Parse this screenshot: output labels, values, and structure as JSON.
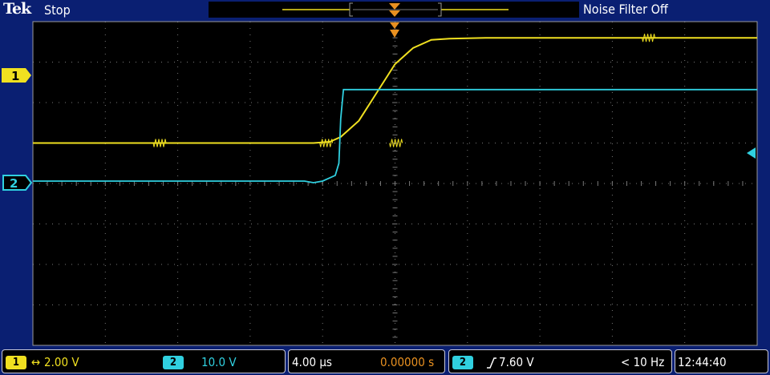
{
  "header": {
    "brand": "Tek",
    "run_state": "Stop",
    "noise_filter": "Noise Filter Off"
  },
  "channels": [
    {
      "id": "1",
      "color": "#f0e020",
      "scale": "2.00 V"
    },
    {
      "id": "2",
      "color": "#30d0e0",
      "scale": "10.0 V"
    }
  ],
  "channel_markers": {
    "ch1": "1",
    "ch2": "2"
  },
  "timebase": {
    "scale": "4.00 µs",
    "position": "0.00000 s"
  },
  "trigger": {
    "source": "2",
    "level": "7.60 V",
    "freq": "< 10 Hz"
  },
  "clock": "12:44:40",
  "colors": {
    "ch1": "#f0e020",
    "ch2": "#30d0e0",
    "trigger": "#e89020",
    "grid": "#787878",
    "frame": "#0a1f72"
  },
  "chart_data": {
    "type": "line",
    "xlim": [
      -20,
      20
    ],
    "x_unit": "µs",
    "y_unit": "divisions",
    "ylim": [
      -4,
      4
    ],
    "grid": true,
    "series": [
      {
        "name": "1",
        "color": "#f0e020",
        "x": [
          -20,
          -8.0,
          -4.5,
          -3.6,
          -3.0,
          -2.0,
          -1.0,
          0.0,
          1.0,
          2.0,
          3.0,
          5.0,
          8.0,
          20
        ],
        "y": [
          1.0,
          1.0,
          1.0,
          1.03,
          1.15,
          1.55,
          2.25,
          2.95,
          3.35,
          3.55,
          3.58,
          3.6,
          3.6,
          3.6
        ]
      },
      {
        "name": "2",
        "color": "#30d0e0",
        "x": [
          -20,
          -5.0,
          -4.5,
          -4.0,
          -3.3,
          -3.1,
          -3.0,
          -2.85,
          20
        ],
        "y": [
          0.06,
          0.06,
          0.02,
          0.06,
          0.2,
          0.5,
          1.6,
          2.32,
          2.32
        ]
      }
    ]
  }
}
